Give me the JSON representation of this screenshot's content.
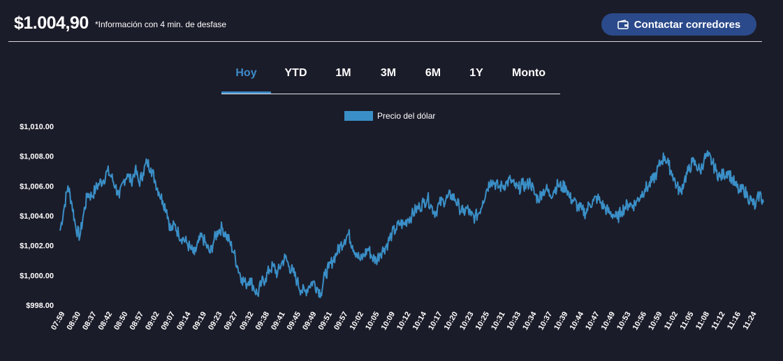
{
  "header": {
    "price": "$1.004,90",
    "delay_note": "*Información con 4 min. de desfase",
    "contact_button_label": "Contactar corredores"
  },
  "tabs": [
    {
      "label": "Hoy",
      "active": true
    },
    {
      "label": "YTD",
      "active": false
    },
    {
      "label": "1M",
      "active": false
    },
    {
      "label": "3M",
      "active": false
    },
    {
      "label": "6M",
      "active": false
    },
    {
      "label": "1Y",
      "active": false
    },
    {
      "label": "Monto",
      "active": false
    }
  ],
  "colors": {
    "background": "#1b1c29",
    "accent": "#3d8bc9",
    "series": "#3a8fc7",
    "button": "#2b4a8b"
  },
  "chart_data": {
    "type": "line",
    "legend": "top",
    "grid": false,
    "ylim": [
      998,
      1010
    ],
    "y_ticks": [
      "$998.00",
      "$1,000.00",
      "$1,002.00",
      "$1,004.00",
      "$1,006.00",
      "$1,008.00",
      "$1,010.00"
    ],
    "x_ticks": [
      "07:59",
      "08:30",
      "08:37",
      "08:42",
      "08:50",
      "08:57",
      "09:02",
      "09:07",
      "09:14",
      "09:19",
      "09:23",
      "09:27",
      "09:32",
      "09:38",
      "09:41",
      "09:45",
      "09:49",
      "09:51",
      "09:57",
      "10:02",
      "10:05",
      "10:09",
      "10:12",
      "10:14",
      "10:17",
      "10:20",
      "10:23",
      "10:25",
      "10:31",
      "10:33",
      "10:34",
      "10:37",
      "10:39",
      "10:44",
      "10:47",
      "10:49",
      "10:53",
      "10:56",
      "10:59",
      "11:02",
      "11:05",
      "11:08",
      "11:12",
      "11:16",
      "11:24"
    ],
    "series": [
      {
        "name": "Precio del dólar",
        "values": [
          1003.0,
          1004.5,
          1006.0,
          1004.8,
          1003.2,
          1002.6,
          1004.2,
          1005.5,
          1005.3,
          1005.8,
          1006.2,
          1006.4,
          1007.0,
          1006.6,
          1006.0,
          1005.2,
          1006.3,
          1006.8,
          1006.3,
          1007.1,
          1006.2,
          1006.9,
          1007.6,
          1007.2,
          1006.4,
          1005.6,
          1005.0,
          1004.4,
          1003.0,
          1003.4,
          1002.8,
          1002.5,
          1002.2,
          1001.8,
          1001.4,
          1002.2,
          1002.6,
          1002.0,
          1001.5,
          1002.4,
          1003.0,
          1003.2,
          1002.7,
          1002.2,
          1001.5,
          1000.5,
          999.8,
          999.4,
          999.8,
          999.2,
          998.7,
          999.5,
          999.8,
          1000.4,
          1000.6,
          1000.1,
          1000.8,
          1001.2,
          1000.6,
          1000.2,
          999.6,
          999.0,
          998.9,
          999.3,
          999.6,
          999.2,
          998.8,
          1000.0,
          1000.5,
          1001.0,
          1001.5,
          1002.0,
          1002.4,
          1002.8,
          1002.0,
          1001.5,
          1001.0,
          1001.4,
          1001.8,
          1001.2,
          1001.0,
          1001.5,
          1001.8,
          1002.2,
          1002.8,
          1003.1,
          1003.5,
          1003.4,
          1003.8,
          1004.0,
          1004.4,
          1004.6,
          1004.9,
          1005.2,
          1004.6,
          1004.2,
          1004.8,
          1005.0,
          1005.2,
          1005.4,
          1005.1,
          1004.6,
          1004.2,
          1004.5,
          1004.0,
          1003.9,
          1004.2,
          1005.0,
          1005.8,
          1006.4,
          1006.2,
          1005.9,
          1006.0,
          1006.2,
          1006.4,
          1006.0,
          1005.8,
          1006.1,
          1006.0,
          1006.3,
          1005.5,
          1005.1,
          1005.6,
          1005.8,
          1005.4,
          1005.7,
          1006.1,
          1005.9,
          1006.0,
          1005.2,
          1005.0,
          1004.6,
          1004.4,
          1004.2,
          1004.8,
          1005.0,
          1005.2,
          1004.8,
          1004.5,
          1004.2,
          1004.1,
          1003.8,
          1004.3,
          1004.6,
          1004.8,
          1004.7,
          1005.0,
          1005.4,
          1005.8,
          1006.0,
          1006.4,
          1006.9,
          1007.6,
          1008.0,
          1007.4,
          1006.8,
          1006.0,
          1005.6,
          1006.4,
          1007.0,
          1007.6,
          1007.4,
          1007.0,
          1007.8,
          1008.0,
          1007.6,
          1007.0,
          1006.6,
          1006.8,
          1007.0,
          1006.5,
          1006.0,
          1005.6,
          1005.8,
          1005.3,
          1005.0,
          1004.6,
          1005.5,
          1004.9
        ]
      }
    ]
  }
}
